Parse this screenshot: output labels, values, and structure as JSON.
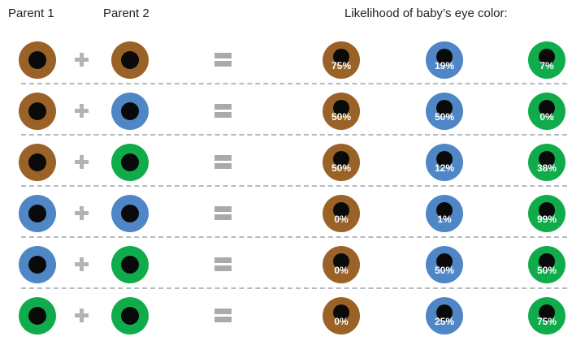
{
  "headers": {
    "parent1": "Parent 1",
    "parent2": "Parent 2",
    "likelihood": "Likelihood of baby’s eye color:"
  },
  "colors": {
    "brown": "#9a6227",
    "blue": "#4f86c6",
    "green": "#10ac4c",
    "pupil": "#0a0a0a",
    "operator": "#b0b0b0"
  },
  "operators": {
    "plus": "plus-icon",
    "equals": "equals-icon"
  },
  "rows": [
    {
      "parent1": "brown",
      "parent2": "brown",
      "brown": "75%",
      "blue": "19%",
      "green": "7%"
    },
    {
      "parent1": "brown",
      "parent2": "blue",
      "brown": "50%",
      "blue": "50%",
      "green": "0%"
    },
    {
      "parent1": "brown",
      "parent2": "green",
      "brown": "50%",
      "blue": "12%",
      "green": "38%"
    },
    {
      "parent1": "blue",
      "parent2": "blue",
      "brown": "0%",
      "blue": "1%",
      "green": "99%"
    },
    {
      "parent1": "blue",
      "parent2": "green",
      "brown": "0%",
      "blue": "50%",
      "green": "50%"
    },
    {
      "parent1": "green",
      "parent2": "green",
      "brown": "0%",
      "blue": "25%",
      "green": "75%"
    }
  ],
  "chart_data": {
    "type": "table",
    "title": "Likelihood of baby’s eye color:",
    "columns": [
      "Parent 1",
      "Parent 2",
      "Brown",
      "Blue",
      "Green"
    ],
    "rows": [
      [
        "Brown",
        "Brown",
        75,
        19,
        7
      ],
      [
        "Brown",
        "Blue",
        50,
        50,
        0
      ],
      [
        "Brown",
        "Green",
        50,
        12,
        38
      ],
      [
        "Blue",
        "Blue",
        0,
        1,
        99
      ],
      [
        "Blue",
        "Green",
        0,
        50,
        50
      ],
      [
        "Green",
        "Green",
        0,
        25,
        75
      ]
    ]
  }
}
